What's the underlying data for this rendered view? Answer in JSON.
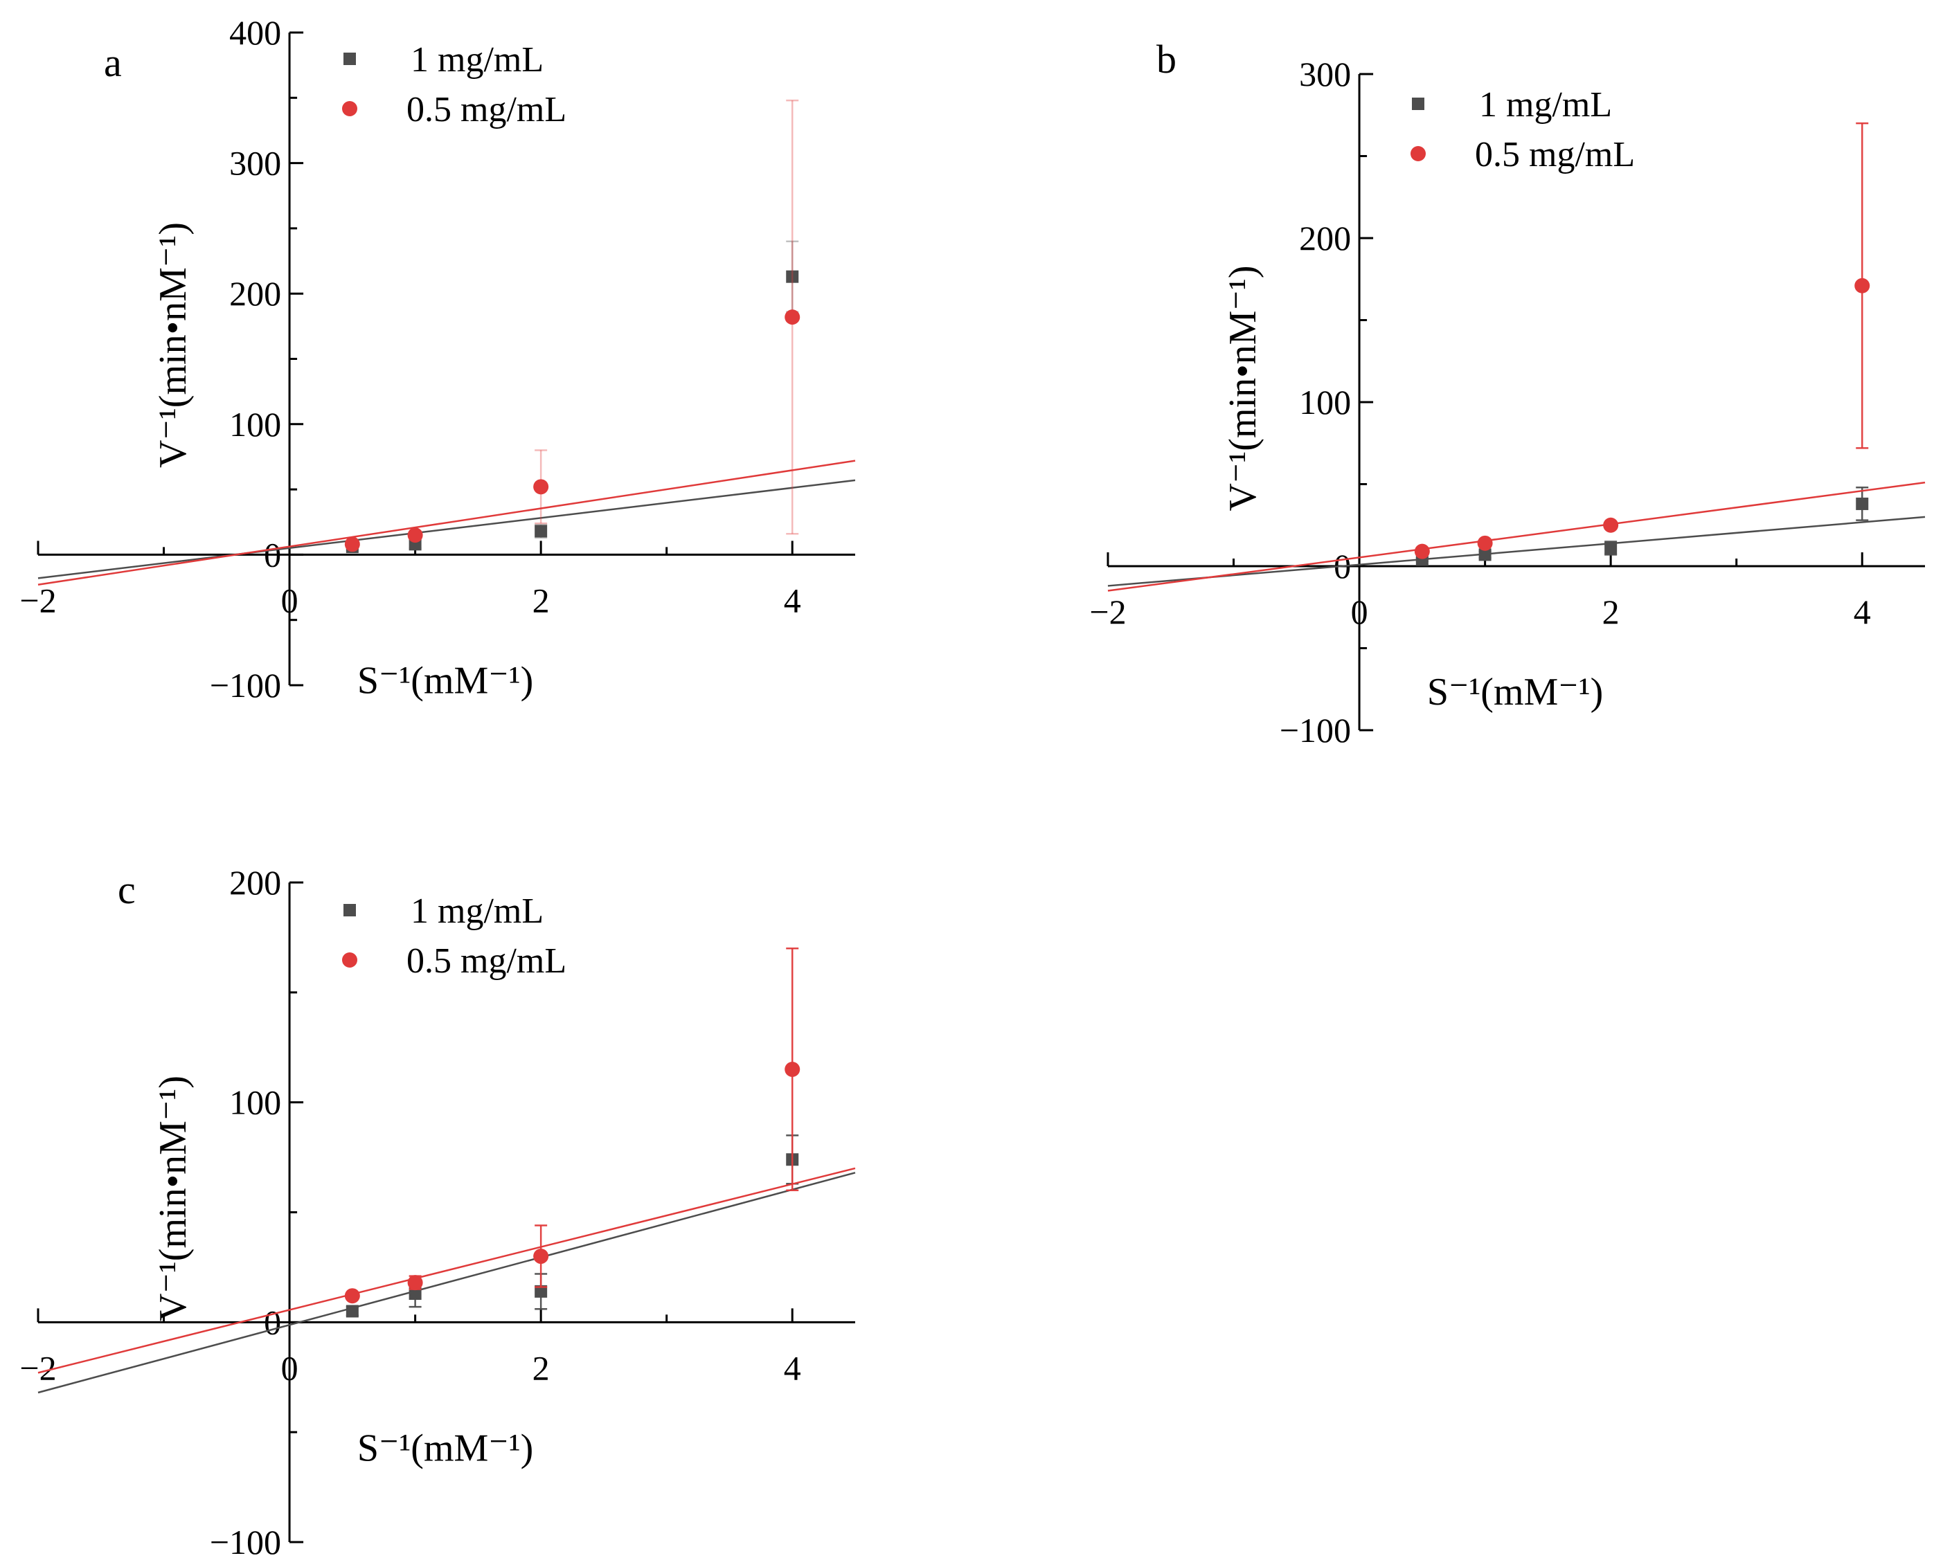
{
  "colors": {
    "series1": "#4d4d4d",
    "series2": "#e03a3a",
    "axis": "#000000"
  },
  "chart_data": [
    {
      "type": "scatter",
      "panel_label": "a",
      "xlabel": "S⁻¹(mM⁻¹)",
      "ylabel": "V⁻¹(min•nM⁻¹)",
      "xlim": [
        -2,
        4.5
      ],
      "ylim": [
        -100,
        400
      ],
      "xticks": [
        -2,
        0,
        2,
        4
      ],
      "yticks": [
        -100,
        0,
        100,
        200,
        300,
        400
      ],
      "xtick_labels": [
        "−2",
        "0",
        "2",
        "4"
      ],
      "ytick_labels": [
        "−100",
        "0",
        "100",
        "200",
        "300",
        "400"
      ],
      "legend_position": "top-left",
      "series": [
        {
          "name": "1 mg/mL",
          "marker": "square",
          "color": "#4d4d4d",
          "x": [
            0.5,
            1,
            2,
            4
          ],
          "y": [
            6,
            8,
            18,
            213
          ],
          "err": [
            2,
            3,
            5,
            27
          ],
          "fit": {
            "x": [
              -2,
              4.5
            ],
            "y": [
              -18,
              57
            ]
          }
        },
        {
          "name": "0.5 mg/mL",
          "marker": "circle",
          "color": "#e03a3a",
          "x": [
            0.5,
            1,
            2,
            4
          ],
          "y": [
            8,
            15,
            52,
            182
          ],
          "err": [
            2,
            3,
            28,
            166
          ],
          "fit": {
            "x": [
              -2,
              4.5
            ],
            "y": [
              -23,
              72
            ]
          }
        }
      ]
    },
    {
      "type": "scatter",
      "panel_label": "b",
      "xlabel": "S⁻¹(mM⁻¹)",
      "ylabel": "V⁻¹(min•nM⁻¹)",
      "xlim": [
        -2,
        4.5
      ],
      "ylim": [
        -100,
        300
      ],
      "xticks": [
        -2,
        0,
        2,
        4
      ],
      "yticks": [
        -100,
        0,
        100,
        200,
        300
      ],
      "xtick_labels": [
        "−2",
        "0",
        "2",
        "4"
      ],
      "ytick_labels": [
        "−100",
        "0",
        "100",
        "200",
        "300"
      ],
      "legend_position": "top-left",
      "series": [
        {
          "name": "1 mg/mL",
          "marker": "square",
          "color": "#4d4d4d",
          "x": [
            0.5,
            1,
            2,
            4
          ],
          "y": [
            4,
            7,
            11,
            38
          ],
          "err": [
            1,
            2,
            4,
            10
          ],
          "fit": {
            "x": [
              -2,
              4.5
            ],
            "y": [
              -12,
              30
            ]
          }
        },
        {
          "name": "0.5 mg/mL",
          "marker": "circle",
          "color": "#e03a3a",
          "x": [
            0.5,
            1,
            2,
            4
          ],
          "y": [
            9,
            14,
            25,
            171
          ],
          "err": [
            1,
            2,
            2,
            99
          ],
          "fit": {
            "x": [
              -2,
              4.5
            ],
            "y": [
              -15,
              51
            ]
          }
        }
      ]
    },
    {
      "type": "scatter",
      "panel_label": "c",
      "xlabel": "S⁻¹(mM⁻¹)",
      "ylabel": "V⁻¹(min•nM⁻¹)",
      "xlim": [
        -2,
        4.5
      ],
      "ylim": [
        -100,
        200
      ],
      "xticks": [
        -2,
        0,
        2,
        4
      ],
      "yticks": [
        -100,
        0,
        100,
        200
      ],
      "xtick_labels": [
        "−2",
        "0",
        "2",
        "4"
      ],
      "ytick_labels": [
        "−100",
        "0",
        "100",
        "200"
      ],
      "legend_position": "top-left",
      "series": [
        {
          "name": "1 mg/mL",
          "marker": "square",
          "color": "#4d4d4d",
          "x": [
            0.5,
            1,
            2,
            4
          ],
          "y": [
            5,
            13,
            14,
            74
          ],
          "err": [
            2,
            6,
            8,
            11
          ],
          "fit": {
            "x": [
              -2,
              4.5
            ],
            "y": [
              -32,
              68
            ]
          }
        },
        {
          "name": "0.5 mg/mL",
          "marker": "circle",
          "color": "#e03a3a",
          "x": [
            0.5,
            1,
            2,
            4
          ],
          "y": [
            12,
            18,
            30,
            115
          ],
          "err": [
            1,
            3,
            14,
            55
          ],
          "fit": {
            "x": [
              -2,
              4.5
            ],
            "y": [
              -23,
              70
            ]
          }
        }
      ]
    }
  ]
}
